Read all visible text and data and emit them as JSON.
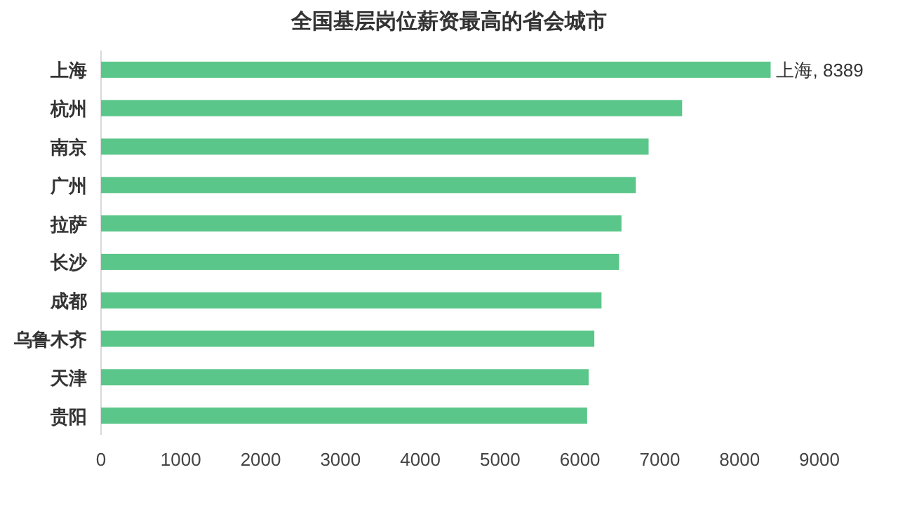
{
  "chart_data": {
    "type": "bar",
    "orientation": "horizontal",
    "title": "全国基层岗位薪资最高的省会城市",
    "categories": [
      "上海",
      "杭州",
      "南京",
      "广州",
      "拉萨",
      "长沙",
      "成都",
      "乌鲁木齐",
      "天津",
      "贵阳"
    ],
    "values": [
      8389,
      7280,
      6860,
      6700,
      6520,
      6490,
      6270,
      6180,
      6110,
      6090
    ],
    "value_labels": [
      "上海, 8389",
      null,
      null,
      null,
      null,
      null,
      null,
      null,
      null,
      null
    ],
    "color": "#5bc68a",
    "xlim": [
      0,
      9000
    ],
    "xticks": [
      0,
      1000,
      2000,
      3000,
      4000,
      5000,
      6000,
      7000,
      8000,
      9000
    ]
  }
}
